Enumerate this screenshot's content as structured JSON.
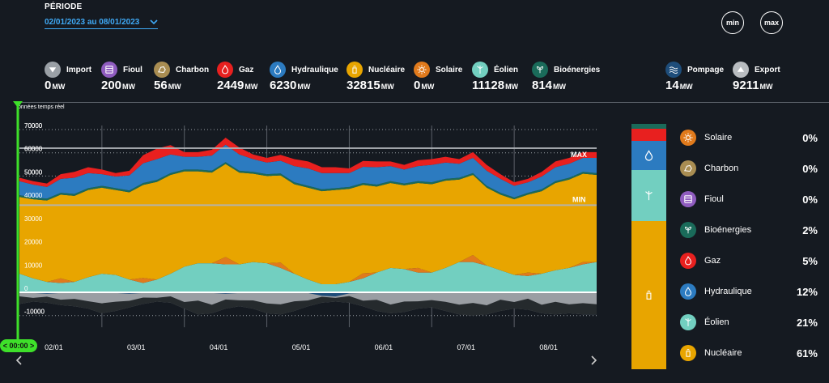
{
  "periode": {
    "label": "PÉRIODE",
    "value": "02/01/2023 au 08/01/2023"
  },
  "buttons": {
    "min": "min",
    "max": "max"
  },
  "legend": [
    {
      "name": "Import",
      "value": "0",
      "unit": "MW",
      "color": "#9aa0a6",
      "icon": "import-icon"
    },
    {
      "name": "Fioul",
      "value": "200",
      "unit": "MW",
      "color": "#8f5cbf",
      "icon": "fioul-icon"
    },
    {
      "name": "Charbon",
      "value": "56",
      "unit": "MW",
      "color": "#a98d52",
      "icon": "charbon-icon"
    },
    {
      "name": "Gaz",
      "value": "2449",
      "unit": "MW",
      "color": "#e8201f",
      "icon": "gaz-icon"
    },
    {
      "name": "Hydraulique",
      "value": "6230",
      "unit": "MW",
      "color": "#2c7bc0",
      "icon": "hydraulique-icon"
    },
    {
      "name": "Nucléaire",
      "value": "32815",
      "unit": "MW",
      "color": "#e8a500",
      "icon": "nucleaire-icon"
    },
    {
      "name": "Solaire",
      "value": "0",
      "unit": "MW",
      "color": "#e07a1c",
      "icon": "solaire-icon"
    },
    {
      "name": "Éolien",
      "value": "11128",
      "unit": "MW",
      "color": "#72cfc0",
      "icon": "eolien-icon"
    },
    {
      "name": "Bioénergies",
      "value": "814",
      "unit": "MW",
      "color": "#1a6b5a",
      "icon": "bioenergies-icon"
    },
    {
      "name": "Pompage",
      "value": "14",
      "unit": "MW",
      "color": "#1e4d7a",
      "icon": "pompage-icon"
    },
    {
      "name": "Export",
      "value": "9211",
      "unit": "MW",
      "color": "#b8bcc0",
      "icon": "export-icon"
    }
  ],
  "shares": [
    {
      "name": "Solaire",
      "pct": "0%",
      "color": "#e07a1c",
      "icon": "solaire-icon"
    },
    {
      "name": "Charbon",
      "pct": "0%",
      "color": "#a98d52",
      "icon": "charbon-icon"
    },
    {
      "name": "Fioul",
      "pct": "0%",
      "color": "#8f5cbf",
      "icon": "fioul-icon"
    },
    {
      "name": "Bioénergies",
      "pct": "2%",
      "color": "#1a6b5a",
      "icon": "bioenergies-icon"
    },
    {
      "name": "Gaz",
      "pct": "5%",
      "color": "#e8201f",
      "icon": "gaz-icon"
    },
    {
      "name": "Hydraulique",
      "pct": "12%",
      "color": "#2c7bc0",
      "icon": "hydraulique-icon"
    },
    {
      "name": "Éolien",
      "pct": "21%",
      "color": "#72cfc0",
      "icon": "eolien-icon"
    },
    {
      "name": "Nucléaire",
      "pct": "61%",
      "color": "#e8a500",
      "icon": "nucleaire-icon"
    }
  ],
  "time_badge": "< 00:00 >",
  "chart_data": {
    "type": "area",
    "title": "onnées temps réel",
    "y_ticks": [
      70000,
      60000,
      50000,
      40000,
      30000,
      20000,
      10000,
      0,
      -10000
    ],
    "x_labels": [
      "02/01",
      "03/01",
      "04/01",
      "05/01",
      "06/01",
      "07/01",
      "08/01"
    ],
    "ylim": [
      -15000,
      73000
    ],
    "max_label": "MAX",
    "min_label": "MIN",
    "max_value": 62000,
    "min_value": 37500,
    "series_order": [
      "Éolien",
      "Solaire",
      "Nucléaire",
      "Bioénergies",
      "Hydraulique",
      "Gaz"
    ],
    "series_colors": {
      "Éolien": "#72cfc0",
      "Solaire": "#e07a1c",
      "Nucléaire": "#e8a500",
      "Bioénergies": "#1a6b5a",
      "Hydraulique": "#2c7bc0",
      "Gaz": "#e8201f",
      "Export": "#9a9ea3",
      "Pompage": "#1e4d7a"
    },
    "t": [
      0,
      4,
      8,
      12,
      16,
      20,
      24,
      28,
      32,
      36,
      40,
      44,
      48,
      52,
      56,
      60,
      64,
      68,
      72,
      76,
      80,
      84,
      88,
      92,
      96,
      100,
      104,
      108,
      112,
      116,
      120,
      124,
      128,
      132,
      136,
      140,
      144,
      148,
      152,
      156,
      160,
      164,
      168
    ],
    "series": [
      {
        "name": "Éolien",
        "values": [
          8000,
          6000,
          4500,
          4000,
          4500,
          6500,
          8000,
          7500,
          5500,
          4000,
          5500,
          8000,
          11000,
          12500,
          12500,
          12000,
          12000,
          13000,
          12500,
          10500,
          8000,
          5500,
          3500,
          3500,
          4500,
          6000,
          8500,
          10500,
          10000,
          8500,
          8500,
          10500,
          13000,
          13000,
          11500,
          9500,
          7500,
          7000,
          8000,
          9500,
          10500,
          12000,
          13000
        ]
      },
      {
        "name": "Solaire",
        "values": [
          0,
          0,
          0,
          2000,
          0,
          0,
          0,
          0,
          0,
          2200,
          0,
          0,
          0,
          0,
          0,
          3200,
          0,
          0,
          0,
          2300,
          0,
          0,
          0,
          0,
          0,
          2200,
          0,
          0,
          0,
          2000,
          0,
          0,
          0,
          3000,
          0,
          0,
          0,
          1500,
          0,
          0,
          0,
          1000,
          0
        ]
      },
      {
        "name": "Nucléaire",
        "values": [
          33000,
          34000,
          35000,
          36000,
          37000,
          37500,
          37000,
          36500,
          37500,
          40000,
          42000,
          42500,
          41000,
          39500,
          39000,
          40000,
          39500,
          38000,
          37500,
          37500,
          38500,
          39500,
          40000,
          40500,
          40000,
          38000,
          37000,
          36500,
          36000,
          36500,
          38000,
          37500,
          35500,
          34500,
          33500,
          32500,
          32500,
          33500,
          35500,
          37500,
          38000,
          38000,
          37500
        ]
      },
      {
        "name": "Bioénergies",
        "values": [
          800,
          800,
          800,
          800,
          800,
          800,
          800,
          800,
          800,
          800,
          800,
          800,
          800,
          800,
          800,
          800,
          800,
          800,
          800,
          800,
          800,
          800,
          800,
          800,
          800,
          800,
          800,
          800,
          800,
          800,
          800,
          800,
          800,
          800,
          800,
          800,
          800,
          800,
          800,
          800,
          800,
          800,
          800
        ]
      },
      {
        "name": "Hydraulique",
        "values": [
          6000,
          5500,
          5000,
          6000,
          7000,
          6500,
          5000,
          5000,
          6500,
          8500,
          9000,
          8000,
          5500,
          5500,
          6500,
          7500,
          7000,
          5500,
          5000,
          5500,
          7000,
          7500,
          7000,
          6500,
          6000,
          7000,
          7500,
          6500,
          6000,
          6500,
          7500,
          7000,
          6000,
          6500,
          6500,
          6000,
          5000,
          4500,
          5500,
          6000,
          6000,
          6000,
          6500
        ]
      },
      {
        "name": "Gaz",
        "values": [
          1500,
          1500,
          1500,
          2000,
          2500,
          2500,
          2000,
          1500,
          2000,
          3500,
          4500,
          4000,
          2000,
          2000,
          2500,
          3000,
          3000,
          2000,
          2000,
          2500,
          3000,
          3000,
          2500,
          2500,
          2000,
          2500,
          2500,
          2000,
          2000,
          2500,
          2500,
          2500,
          2000,
          2500,
          2500,
          2000,
          1500,
          1500,
          2000,
          2500,
          2500,
          2500,
          2500
        ]
      },
      {
        "name": "Export",
        "values": [
          -5000,
          -4000,
          -4500,
          -5500,
          -6000,
          -7000,
          -9000,
          -8000,
          -6500,
          -5000,
          -4000,
          -4500,
          -7000,
          -9500,
          -9000,
          -7000,
          -6000,
          -7000,
          -9000,
          -9500,
          -8000,
          -6000,
          -4500,
          -4000,
          -4500,
          -6000,
          -8000,
          -9000,
          -8500,
          -7000,
          -6500,
          -8000,
          -9500,
          -10000,
          -9500,
          -8000,
          -7000,
          -7500,
          -9000,
          -9500,
          -9000,
          -9500,
          -9500
        ]
      },
      {
        "name": "Pompage",
        "values": [
          -300,
          -300,
          -600,
          -300,
          -300,
          -300,
          -300,
          -300,
          -600,
          -300,
          -300,
          -300,
          -300,
          -300,
          -300,
          -600,
          -300,
          -300,
          -300,
          -300,
          -300,
          -300,
          -1500,
          -1800,
          -500,
          -300,
          -300,
          -300,
          -300,
          -300,
          -300,
          -300,
          -300,
          -300,
          -300,
          -300,
          -300,
          -300,
          -300,
          -300,
          -300,
          -300,
          -300
        ]
      }
    ]
  }
}
